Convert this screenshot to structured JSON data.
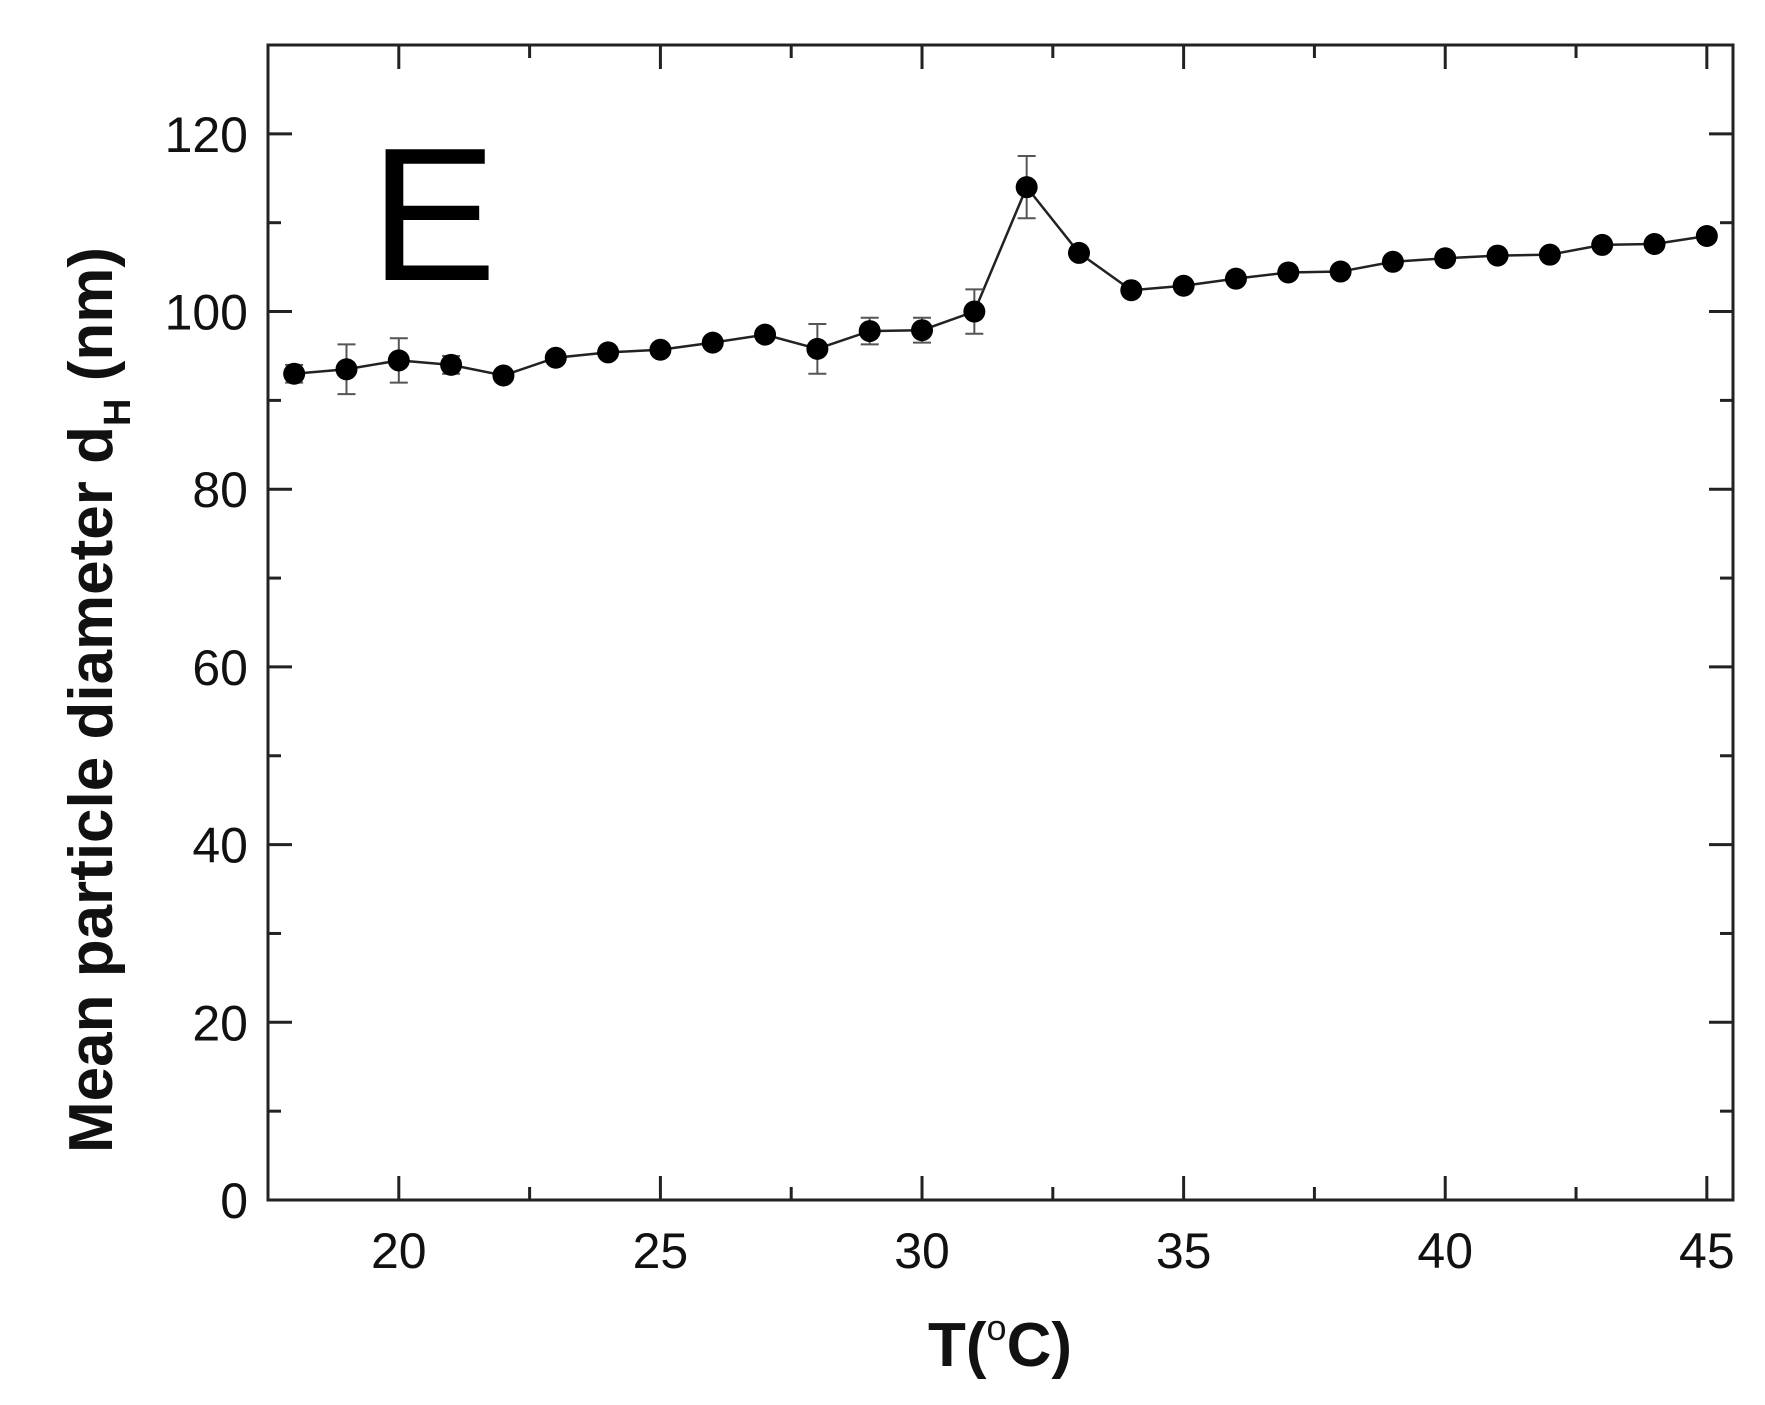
{
  "chart_data": {
    "type": "scatter",
    "panel_label": "E",
    "xlabel": {
      "main": "T(",
      "degree": "o",
      "unit": "C)"
    },
    "ylabel": {
      "main": "Mean particle diameter d",
      "subscript": "H",
      "unit": " (nm)"
    },
    "xlim": [
      17.5,
      45.5
    ],
    "ylim": [
      0,
      130
    ],
    "x_ticks": [
      20,
      25,
      30,
      35,
      40,
      45
    ],
    "y_ticks": [
      0,
      20,
      40,
      60,
      80,
      100,
      120
    ],
    "grid": false,
    "connected": true,
    "marker_color": "#000000",
    "line_color": "#222222",
    "series": [
      {
        "x": [
          18,
          19,
          20,
          21,
          22,
          23,
          24,
          25,
          26,
          27,
          28,
          29,
          30,
          31,
          32,
          33,
          34,
          35,
          36,
          37,
          38,
          39,
          40,
          41,
          42,
          43,
          44,
          45
        ],
        "y": [
          93.0,
          93.5,
          94.5,
          94.0,
          92.8,
          94.8,
          95.4,
          95.7,
          96.5,
          97.4,
          95.8,
          97.8,
          97.9,
          100.0,
          114.0,
          106.6,
          102.4,
          102.9,
          103.7,
          104.4,
          104.5,
          105.6,
          106.0,
          106.3,
          106.4,
          107.5,
          107.6,
          108.5
        ],
        "error": [
          1.0,
          2.8,
          2.5,
          1.0,
          0.5,
          0.6,
          0.5,
          0.5,
          0.5,
          0.6,
          2.8,
          1.5,
          1.4,
          2.5,
          3.5,
          0.5,
          0.5,
          0.5,
          0.5,
          0.5,
          0.5,
          0.5,
          0.5,
          0.5,
          0.5,
          0.5,
          0.5,
          0.5
        ]
      }
    ]
  }
}
